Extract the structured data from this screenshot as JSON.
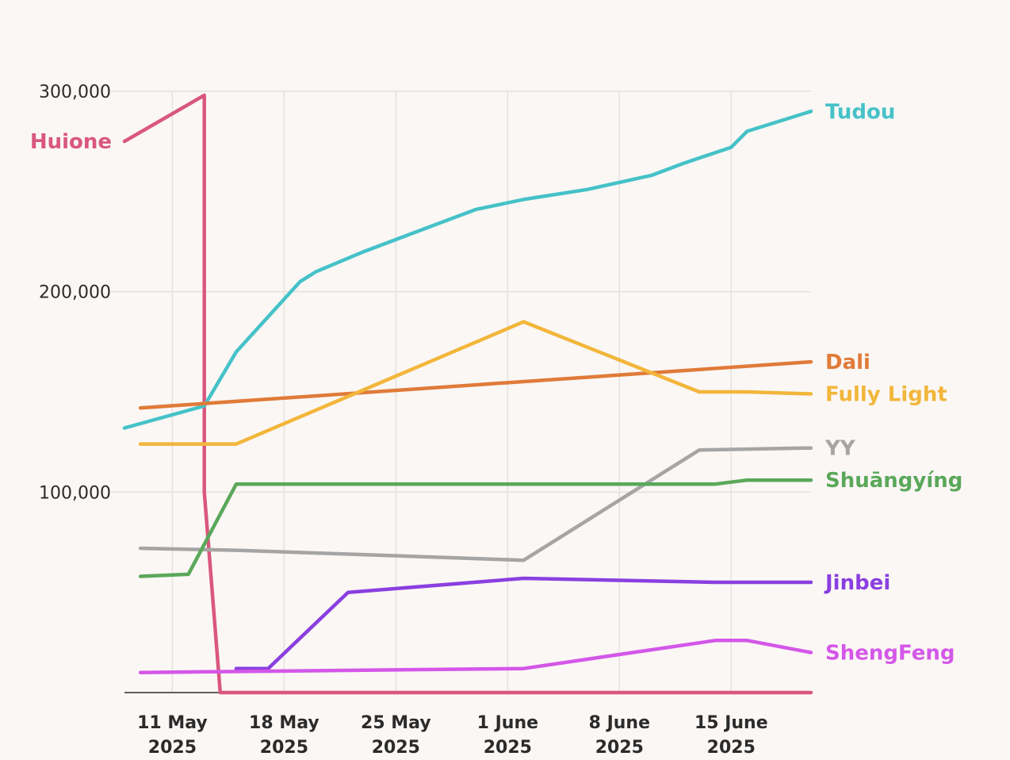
{
  "chart_data": {
    "type": "line",
    "title": "",
    "xlabel": "",
    "ylabel": "",
    "x_range": [
      "2025-05-08",
      "2025-06-20"
    ],
    "ylim": [
      0,
      300000
    ],
    "grid": true,
    "y_ticks": [
      {
        "value": 100000,
        "label": "100,000"
      },
      {
        "value": 200000,
        "label": "200,000"
      },
      {
        "value": 300000,
        "label": "300,000"
      }
    ],
    "x_ticks": [
      {
        "date": "2025-05-11",
        "line1": "11 May",
        "line2": "2025"
      },
      {
        "date": "2025-05-18",
        "line1": "18 May",
        "line2": "2025"
      },
      {
        "date": "2025-05-25",
        "line1": "25 May",
        "line2": "2025"
      },
      {
        "date": "2025-06-01",
        "line1": "1 June",
        "line2": "2025"
      },
      {
        "date": "2025-06-08",
        "line1": "8 June",
        "line2": "2025"
      },
      {
        "date": "2025-06-15",
        "line1": "15 June",
        "line2": "2025"
      }
    ],
    "series": [
      {
        "name": "Huione",
        "color": "#d9577e",
        "label_side": "left",
        "points": [
          [
            "2025-05-08",
            275000
          ],
          [
            "2025-05-13",
            298000
          ],
          [
            "2025-05-13",
            100000
          ],
          [
            "2025-05-14",
            0
          ],
          [
            "2025-06-20",
            0
          ]
        ]
      },
      {
        "name": "Tudou",
        "color": "#45c2c8",
        "label_side": "right",
        "points": [
          [
            "2025-05-08",
            132000
          ],
          [
            "2025-05-13",
            143000
          ],
          [
            "2025-05-15",
            170000
          ],
          [
            "2025-05-19",
            205000
          ],
          [
            "2025-05-20",
            210000
          ],
          [
            "2025-05-23",
            220000
          ],
          [
            "2025-05-28",
            235000
          ],
          [
            "2025-05-30",
            241000
          ],
          [
            "2025-06-02",
            246000
          ],
          [
            "2025-06-06",
            251000
          ],
          [
            "2025-06-10",
            258000
          ],
          [
            "2025-06-12",
            264000
          ],
          [
            "2025-06-15",
            272000
          ],
          [
            "2025-06-16",
            280000
          ],
          [
            "2025-06-20",
            290000
          ]
        ]
      },
      {
        "name": "Dali",
        "color": "#e07b39",
        "label_side": "right",
        "points": [
          [
            "2025-05-09",
            142000
          ],
          [
            "2025-06-20",
            165000
          ]
        ]
      },
      {
        "name": "Fully Light",
        "color": "#f2b63b",
        "label_side": "right",
        "points": [
          [
            "2025-05-09",
            124000
          ],
          [
            "2025-05-15",
            124000
          ],
          [
            "2025-06-02",
            185000
          ],
          [
            "2025-06-13",
            150000
          ],
          [
            "2025-06-16",
            150000
          ],
          [
            "2025-06-20",
            149000
          ]
        ]
      },
      {
        "name": "YY",
        "color": "#a5a5a5",
        "label_side": "right",
        "points": [
          [
            "2025-05-09",
            72000
          ],
          [
            "2025-05-15",
            71000
          ],
          [
            "2025-06-02",
            66000
          ],
          [
            "2025-06-13",
            121000
          ],
          [
            "2025-06-20",
            122000
          ]
        ]
      },
      {
        "name": "Shuāngyíng",
        "color": "#5aa85a",
        "label_side": "right",
        "points": [
          [
            "2025-05-09",
            58000
          ],
          [
            "2025-05-12",
            59000
          ],
          [
            "2025-05-15",
            104000
          ],
          [
            "2025-06-14",
            104000
          ],
          [
            "2025-06-16",
            106000
          ],
          [
            "2025-06-20",
            106000
          ]
        ]
      },
      {
        "name": "Jinbei",
        "color": "#8a3fe0",
        "label_side": "right",
        "points": [
          [
            "2025-05-15",
            12000
          ],
          [
            "2025-05-17",
            12000
          ],
          [
            "2025-05-22",
            50000
          ],
          [
            "2025-06-02",
            57000
          ],
          [
            "2025-06-14",
            55000
          ],
          [
            "2025-06-20",
            55000
          ]
        ]
      },
      {
        "name": "ShengFeng",
        "color": "#d457e8",
        "label_side": "right",
        "points": [
          [
            "2025-05-09",
            10000
          ],
          [
            "2025-06-02",
            12000
          ],
          [
            "2025-06-14",
            26000
          ],
          [
            "2025-06-16",
            26000
          ],
          [
            "2025-06-20",
            20000
          ]
        ]
      }
    ]
  }
}
